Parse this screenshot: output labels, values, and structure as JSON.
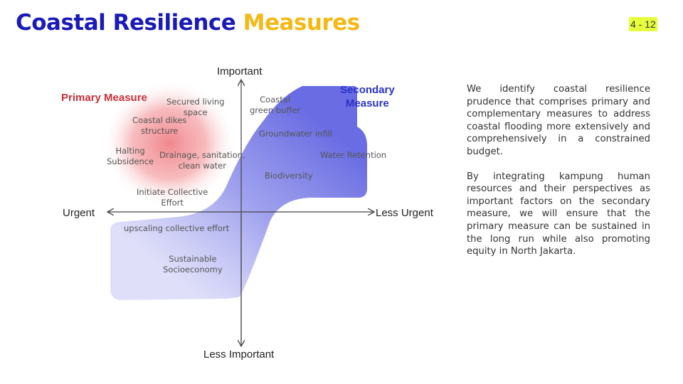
{
  "header": {
    "title_part1": "Coastal Resilience",
    "title_part2": "Measures",
    "page_badge": "4 - 12"
  },
  "diagram": {
    "axes": {
      "top": "Important",
      "bottom": "Less Important",
      "left": "Urgent",
      "right": "Less Urgent"
    },
    "categories": {
      "primary": "Primary Measure",
      "secondary": "Secondary\nMeasure"
    },
    "items": {
      "secured_living_space": "Secured living\nspace",
      "coastal_dikes": "Coastal dikes\nstructure",
      "halting_subsidence": "Halting\nSubsidence",
      "drainage": "Drainage, sanitation,\nclean water",
      "initiate_collective": "Initiate Collective\nEffort",
      "coastal_green_buffer": "Coastal\ngreen buffer",
      "groundwater_infill": "Groundwater infill",
      "water_retention": "Water Retention",
      "biodiversity": "Biodiversity",
      "upscaling": "upscaling collective effort",
      "sustainable": "Sustainable\nSocioeconomy"
    },
    "colors": {
      "primary_red": "#e8474f",
      "secondary_blue": "#5a5de0"
    }
  },
  "description": {
    "paragraph1": "We identify coastal resilience prudence that comprises primary and complementary measures to address coastal flooding more extensively and comprehensively in a constrained budget.",
    "paragraph2": "By integrating kampung human resources and their perspectives as important factors on the secondary measure, we will ensure that the primary measure can be sustained in the long run while also promoting equity in North Jakarta."
  }
}
